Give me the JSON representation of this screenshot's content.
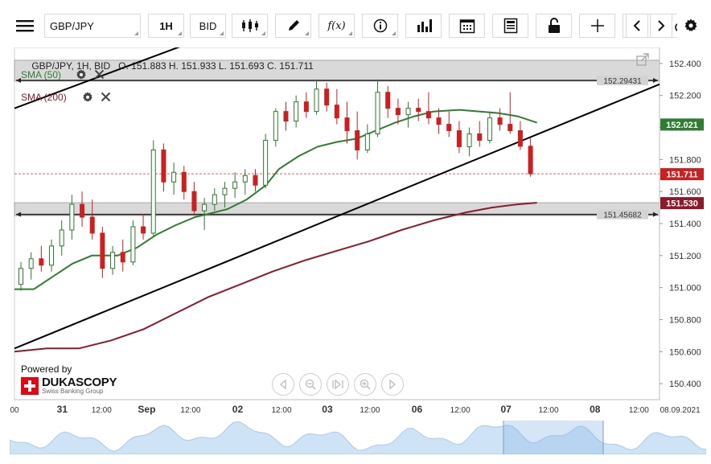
{
  "toolbar": {
    "symbol": "GBP/JPY",
    "period": "1H",
    "price_type": "BID",
    "fx_label": "f(x)",
    "icons": [
      "menu-icon",
      "candles-icon",
      "pencil-icon",
      "function-icon",
      "info-icon",
      "bar-chart-icon",
      "calendar-icon",
      "document-icon",
      "lock-icon",
      "crosshair-icon",
      "zoom-icon",
      "cloud-upload-icon",
      "arrow-left-icon",
      "arrow-right-icon",
      "gear-icon"
    ]
  },
  "header": {
    "info": "GBP/JPY, 1H, BID   O. 151.883 H. 151.933 L. 151.693 C. 151.711"
  },
  "indicators": [
    {
      "label": "SMA (50)",
      "color": "#2e7d32"
    },
    {
      "label": "SMA (200)",
      "color": "#8b1a2b"
    }
  ],
  "levels": {
    "upper_label": "152.29431",
    "lower_label": "151.45682"
  },
  "price_tags": {
    "sma50": "152.021",
    "close": "151.711",
    "sma200": "151.530"
  },
  "branding": {
    "powered_by": "Powered by",
    "name": "DUKASCOPY",
    "tagline": "Swiss Banking Group"
  },
  "colors": {
    "up": "#ffffff",
    "down": "#cc2020",
    "candle_outline": "#2a7a2a",
    "sma50": "#2e7d32",
    "sma200": "#8b1a2b",
    "trend": "#000000",
    "zone": "#d3d3d3",
    "close_line": "#cc2020"
  },
  "chart_data": {
    "type": "candlestick",
    "symbol": "GBP/JPY",
    "timeframe": "1H",
    "ohlc_last": {
      "open": 151.883,
      "high": 151.933,
      "low": 151.693,
      "close": 151.711
    },
    "ylim": [
      150.3,
      152.5
    ],
    "yticks": [
      "152.400",
      "152.200",
      "152.000",
      "151.800",
      "151.600",
      "151.400",
      "151.200",
      "151.000",
      "150.800",
      "150.600",
      "150.400"
    ],
    "xticks": [
      {
        "label": "00",
        "bold": false
      },
      {
        "label": "31",
        "bold": true
      },
      {
        "label": "12:00",
        "bold": false
      },
      {
        "label": "Sep",
        "bold": true
      },
      {
        "label": "12:00",
        "bold": false
      },
      {
        "label": "02",
        "bold": true
      },
      {
        "label": "12:00",
        "bold": false
      },
      {
        "label": "03",
        "bold": true
      },
      {
        "label": "12:00",
        "bold": false
      },
      {
        "label": "06",
        "bold": true
      },
      {
        "label": "12:00",
        "bold": false
      },
      {
        "label": "07",
        "bold": true
      },
      {
        "label": "12:00",
        "bold": false
      },
      {
        "label": "08",
        "bold": true
      },
      {
        "label": "12:00",
        "bold": false
      },
      {
        "label": "08.09.2021",
        "bold": false
      }
    ],
    "zones": [
      {
        "low": 152.29,
        "high": 152.42
      },
      {
        "low": 151.45,
        "high": 151.53
      }
    ],
    "hlines": [
      152.294,
      151.457
    ],
    "close": 151.711,
    "trendlines": [
      {
        "x1": 0.0,
        "y1": 150.62,
        "x2": 1.0,
        "y2": 152.27
      },
      {
        "x1": 0.0,
        "y1": 152.12,
        "x2": 0.26,
        "y2": 152.51
      }
    ],
    "sma50": [
      [
        0.0,
        150.99
      ],
      [
        0.03,
        150.99
      ],
      [
        0.06,
        151.07
      ],
      [
        0.09,
        151.15
      ],
      [
        0.12,
        151.2
      ],
      [
        0.16,
        151.2
      ],
      [
        0.19,
        151.25
      ],
      [
        0.22,
        151.33
      ],
      [
        0.25,
        151.39
      ],
      [
        0.28,
        151.44
      ],
      [
        0.3,
        151.46
      ],
      [
        0.33,
        151.49
      ],
      [
        0.36,
        151.55
      ],
      [
        0.39,
        151.64
      ],
      [
        0.41,
        151.74
      ],
      [
        0.44,
        151.82
      ],
      [
        0.47,
        151.88
      ],
      [
        0.5,
        151.91
      ],
      [
        0.53,
        151.93
      ],
      [
        0.56,
        151.98
      ],
      [
        0.59,
        152.03
      ],
      [
        0.62,
        152.07
      ],
      [
        0.65,
        152.1
      ],
      [
        0.69,
        152.11
      ],
      [
        0.72,
        152.1
      ],
      [
        0.75,
        152.09
      ],
      [
        0.78,
        152.07
      ],
      [
        0.81,
        152.03
      ]
    ],
    "sma200": [
      [
        0.0,
        150.6
      ],
      [
        0.05,
        150.62
      ],
      [
        0.1,
        150.62
      ],
      [
        0.15,
        150.67
      ],
      [
        0.2,
        150.74
      ],
      [
        0.25,
        150.84
      ],
      [
        0.3,
        150.94
      ],
      [
        0.35,
        151.02
      ],
      [
        0.4,
        151.1
      ],
      [
        0.45,
        151.17
      ],
      [
        0.5,
        151.23
      ],
      [
        0.55,
        151.29
      ],
      [
        0.6,
        151.36
      ],
      [
        0.65,
        151.42
      ],
      [
        0.7,
        151.47
      ],
      [
        0.74,
        151.5
      ],
      [
        0.78,
        151.52
      ],
      [
        0.81,
        151.53
      ]
    ],
    "candles": [
      [
        151.02,
        151.16,
        150.98,
        151.12
      ],
      [
        151.12,
        151.22,
        151.05,
        151.18
      ],
      [
        151.18,
        151.26,
        151.1,
        151.14
      ],
      [
        151.14,
        151.3,
        151.1,
        151.26
      ],
      [
        151.26,
        151.42,
        151.2,
        151.36
      ],
      [
        151.36,
        151.58,
        151.3,
        151.52
      ],
      [
        151.52,
        151.6,
        151.38,
        151.44
      ],
      [
        151.44,
        151.55,
        151.3,
        151.34
      ],
      [
        151.34,
        151.38,
        151.06,
        151.12
      ],
      [
        151.12,
        151.26,
        151.08,
        151.22
      ],
      [
        151.22,
        151.3,
        151.1,
        151.16
      ],
      [
        151.16,
        151.42,
        151.14,
        151.38
      ],
      [
        151.38,
        151.46,
        151.3,
        151.34
      ],
      [
        151.34,
        151.92,
        151.32,
        151.86
      ],
      [
        151.86,
        151.9,
        151.6,
        151.66
      ],
      [
        151.66,
        151.78,
        151.58,
        151.72
      ],
      [
        151.72,
        151.76,
        151.55,
        151.6
      ],
      [
        151.6,
        151.66,
        151.45,
        151.48
      ],
      [
        151.48,
        151.56,
        151.36,
        151.52
      ],
      [
        151.52,
        151.62,
        151.48,
        151.58
      ],
      [
        151.58,
        151.66,
        151.5,
        151.62
      ],
      [
        151.62,
        151.72,
        151.56,
        151.66
      ],
      [
        151.66,
        151.74,
        151.58,
        151.7
      ],
      [
        151.7,
        151.74,
        151.6,
        151.64
      ],
      [
        151.64,
        151.96,
        151.62,
        151.92
      ],
      [
        151.92,
        152.12,
        151.88,
        152.1
      ],
      [
        152.1,
        152.16,
        151.98,
        152.04
      ],
      [
        152.04,
        152.2,
        152.0,
        152.16
      ],
      [
        152.16,
        152.22,
        152.06,
        152.1
      ],
      [
        152.1,
        152.3,
        152.08,
        152.24
      ],
      [
        152.24,
        152.28,
        152.1,
        152.14
      ],
      [
        152.14,
        152.24,
        152.02,
        152.06
      ],
      [
        152.06,
        152.16,
        151.9,
        151.98
      ],
      [
        151.98,
        152.1,
        151.8,
        151.86
      ],
      [
        151.86,
        152.02,
        151.84,
        151.96
      ],
      [
        151.96,
        152.3,
        151.94,
        152.22
      ],
      [
        152.22,
        152.26,
        152.06,
        152.12
      ],
      [
        152.12,
        152.18,
        152.02,
        152.08
      ],
      [
        152.08,
        152.16,
        152.0,
        152.12
      ],
      [
        152.12,
        152.18,
        152.04,
        152.1
      ],
      [
        152.1,
        152.22,
        152.02,
        152.06
      ],
      [
        152.06,
        152.12,
        151.96,
        152.02
      ],
      [
        152.02,
        152.1,
        151.94,
        151.98
      ],
      [
        151.98,
        152.04,
        151.84,
        151.88
      ],
      [
        151.88,
        152.0,
        151.82,
        151.96
      ],
      [
        151.96,
        152.04,
        151.88,
        151.92
      ],
      [
        151.92,
        152.1,
        151.9,
        152.06
      ],
      [
        152.06,
        152.12,
        151.98,
        152.02
      ],
      [
        152.02,
        152.22,
        151.96,
        151.98
      ],
      [
        151.98,
        152.04,
        151.86,
        151.883
      ],
      [
        151.883,
        151.933,
        151.693,
        151.711
      ]
    ]
  }
}
